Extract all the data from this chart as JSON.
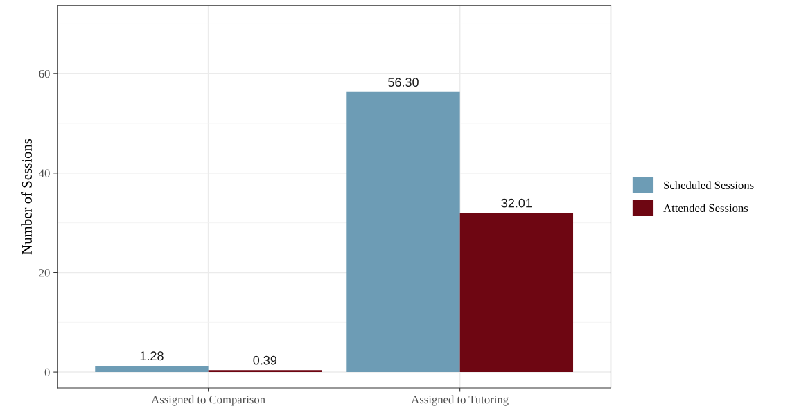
{
  "chart_data": {
    "type": "bar",
    "ylabel": "Number of Sessions",
    "categories": [
      "Assigned to Comparison",
      "Assigned to Tutoring"
    ],
    "series": [
      {
        "name": "Scheduled Sessions",
        "color": "#6d9cb5",
        "values": [
          1.28,
          56.3
        ],
        "value_labels": [
          "1.28",
          "56.30"
        ]
      },
      {
        "name": "Attended Sessions",
        "color": "#6e0612",
        "values": [
          0.39,
          32.01
        ],
        "value_labels": [
          "0.39",
          "32.01"
        ]
      }
    ],
    "ylim": [
      -3.2,
      73.7
    ],
    "yticks": [
      0,
      {
        "value": 10,
        "label": null
      },
      20,
      {
        "value": 30,
        "label": null
      },
      40,
      {
        "value": 50,
        "label": null
      },
      60,
      {
        "value": 70,
        "label": null
      }
    ],
    "grid": true,
    "legend": "right"
  }
}
